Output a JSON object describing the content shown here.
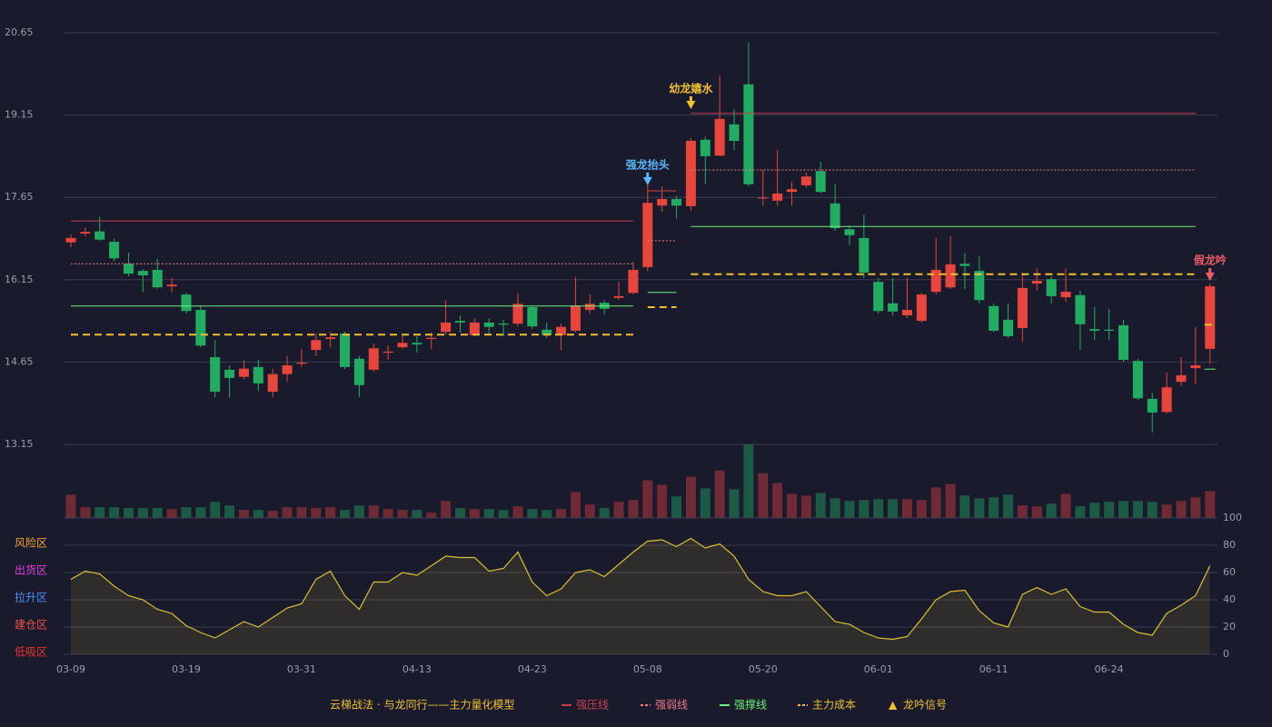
{
  "chart_data": [
    {
      "type": "candlestick",
      "title": "云梯战法 · 与龙同行——主力量化模型",
      "ylim": [
        13.15,
        20.65
      ],
      "yticks": [
        13.15,
        14.65,
        16.15,
        17.65,
        19.15,
        20.65
      ],
      "grid": true,
      "up_color": "#e8453c",
      "down_color": "#22ac62",
      "open": [
        16.83,
        16.99,
        17.03,
        16.84,
        16.44,
        16.31,
        16.33,
        16.03,
        15.88,
        15.6,
        14.74,
        14.51,
        14.38,
        14.56,
        14.11,
        14.43,
        14.62,
        14.87,
        15.07,
        15.17,
        14.71,
        14.51,
        14.82,
        14.92,
        15.0,
        15.07,
        15.2,
        15.4,
        15.14,
        15.37,
        15.35,
        15.35,
        15.65,
        15.24,
        15.14,
        15.22,
        15.6,
        15.73,
        15.82,
        15.91,
        16.38,
        17.5,
        17.62,
        17.49,
        18.7,
        18.41,
        18.98,
        19.71,
        17.63,
        17.59,
        17.75,
        17.87,
        18.13,
        17.54,
        17.07,
        16.91,
        16.11,
        15.72,
        15.5,
        15.4,
        15.93,
        16.01,
        16.44,
        16.31,
        15.67,
        15.42,
        15.27,
        16.08,
        16.16,
        15.83,
        15.87,
        15.25,
        15.24,
        15.32,
        14.67,
        13.98,
        13.74,
        14.29,
        14.54,
        14.89
      ],
      "high": [
        16.97,
        17.1,
        17.3,
        16.9,
        16.64,
        16.34,
        16.53,
        16.18,
        15.92,
        15.68,
        15.05,
        14.59,
        14.68,
        14.69,
        14.53,
        14.76,
        14.89,
        15.17,
        15.2,
        15.2,
        14.76,
        14.99,
        14.95,
        15.12,
        15.12,
        15.19,
        15.77,
        15.5,
        15.45,
        15.45,
        15.42,
        15.91,
        15.68,
        15.37,
        15.35,
        16.2,
        15.88,
        15.78,
        16.11,
        16.48,
        18.02,
        17.85,
        17.68,
        18.73,
        18.76,
        19.87,
        19.26,
        20.47,
        18.15,
        18.51,
        17.93,
        18.1,
        18.3,
        17.9,
        17.14,
        17.34,
        16.18,
        16.18,
        16.18,
        15.91,
        16.91,
        16.94,
        16.64,
        16.58,
        15.72,
        15.72,
        16.28,
        16.35,
        16.21,
        16.35,
        15.95,
        15.65,
        15.62,
        15.42,
        14.71,
        14.09,
        14.46,
        14.74,
        15.29,
        16.08
      ],
      "low": [
        16.74,
        16.94,
        16.86,
        16.48,
        16.21,
        15.92,
        15.98,
        15.92,
        15.53,
        14.92,
        14.01,
        14.0,
        14.33,
        14.13,
        14.01,
        14.29,
        14.56,
        14.76,
        14.92,
        14.52,
        14.01,
        14.47,
        14.69,
        14.89,
        14.82,
        14.89,
        15.15,
        15.19,
        15.12,
        15.15,
        15.12,
        15.3,
        15.25,
        15.09,
        14.87,
        15.19,
        15.53,
        15.52,
        15.78,
        15.88,
        16.31,
        17.39,
        17.27,
        17.4,
        17.9,
        18.4,
        18.51,
        17.85,
        17.5,
        17.5,
        17.5,
        17.82,
        17.72,
        17.04,
        16.78,
        16.18,
        15.53,
        15.5,
        15.45,
        15.37,
        15.88,
        15.98,
        15.98,
        15.72,
        15.19,
        15.09,
        15.02,
        15.95,
        15.72,
        15.75,
        14.87,
        15.05,
        15.05,
        14.66,
        13.96,
        13.37,
        13.71,
        14.21,
        14.24,
        14.62
      ],
      "close": [
        16.91,
        17.02,
        16.88,
        16.54,
        16.26,
        16.23,
        16.01,
        16.06,
        15.58,
        14.95,
        14.11,
        14.36,
        14.53,
        14.26,
        14.43,
        14.59,
        14.64,
        15.05,
        15.1,
        14.56,
        14.23,
        14.9,
        14.84,
        15.0,
        14.97,
        15.09,
        15.37,
        15.37,
        15.37,
        15.29,
        15.33,
        15.71,
        15.3,
        15.14,
        15.29,
        15.68,
        15.71,
        15.62,
        15.85,
        16.33,
        17.55,
        17.62,
        17.5,
        18.68,
        18.4,
        19.08,
        18.68,
        17.89,
        17.65,
        17.72,
        17.8,
        18.03,
        17.75,
        17.09,
        16.96,
        16.28,
        15.58,
        15.57,
        15.6,
        15.88,
        16.33,
        16.43,
        16.4,
        15.78,
        15.22,
        15.12,
        16.0,
        16.13,
        15.85,
        15.93,
        15.34,
        15.22,
        15.22,
        14.69,
        13.99,
        13.73,
        14.19,
        14.41,
        14.59,
        16.03
      ],
      "series": [
        {
          "name": "强压线",
          "color": "#c8404a",
          "style": "solid",
          "values": [
            17.22,
            17.22,
            17.22,
            17.22,
            17.22,
            17.22,
            17.22,
            17.22,
            17.22,
            17.22,
            17.22,
            17.22,
            17.22,
            17.22,
            17.22,
            17.22,
            17.22,
            17.22,
            17.22,
            17.22,
            17.22,
            17.22,
            17.22,
            17.22,
            17.22,
            17.22,
            17.22,
            17.22,
            17.22,
            17.22,
            17.22,
            17.22,
            17.22,
            17.22,
            17.22,
            17.22,
            17.22,
            17.22,
            17.22,
            17.22,
            17.77,
            17.77,
            17.77,
            19.18,
            19.18,
            19.18,
            19.18,
            19.18,
            19.18,
            19.18,
            19.18,
            19.18,
            19.18,
            19.18,
            19.18,
            19.18,
            19.18,
            19.18,
            19.18,
            19.18,
            19.18,
            19.18,
            19.18,
            19.18,
            19.18,
            19.18,
            19.18,
            19.18,
            19.18,
            19.18,
            19.18,
            19.18,
            19.18,
            19.18,
            19.18,
            19.18,
            19.18,
            19.18,
            19.18,
            null
          ]
        },
        {
          "name": "强弱线",
          "color": "#f07a8a",
          "style": "dot",
          "values": [
            16.44,
            16.44,
            16.44,
            16.44,
            16.44,
            16.44,
            16.44,
            16.44,
            16.44,
            16.44,
            16.44,
            16.44,
            16.44,
            16.44,
            16.44,
            16.44,
            16.44,
            16.44,
            16.44,
            16.44,
            16.44,
            16.44,
            16.44,
            16.44,
            16.44,
            16.44,
            16.44,
            16.44,
            16.44,
            16.44,
            16.44,
            16.44,
            16.44,
            16.44,
            16.44,
            16.44,
            16.44,
            16.44,
            16.44,
            16.44,
            16.86,
            16.86,
            16.86,
            18.15,
            18.15,
            18.15,
            18.15,
            18.15,
            18.15,
            18.15,
            18.15,
            18.15,
            18.15,
            18.15,
            18.15,
            18.15,
            18.15,
            18.15,
            18.15,
            18.15,
            18.15,
            18.15,
            18.15,
            18.15,
            18.15,
            18.15,
            18.15,
            18.15,
            18.15,
            18.15,
            18.15,
            18.15,
            18.15,
            18.15,
            18.15,
            18.15,
            18.15,
            18.15,
            18.15,
            null
          ]
        },
        {
          "name": "强撑线",
          "color": "#6ef07a",
          "style": "solid",
          "values": [
            15.67,
            15.67,
            15.67,
            15.67,
            15.67,
            15.67,
            15.67,
            15.67,
            15.67,
            15.67,
            15.67,
            15.67,
            15.67,
            15.67,
            15.67,
            15.67,
            15.67,
            15.67,
            15.67,
            15.67,
            15.67,
            15.67,
            15.67,
            15.67,
            15.67,
            15.67,
            15.67,
            15.67,
            15.67,
            15.67,
            15.67,
            15.67,
            15.67,
            15.67,
            15.67,
            15.67,
            15.67,
            15.67,
            15.67,
            15.67,
            15.92,
            15.92,
            15.92,
            17.12,
            17.12,
            17.12,
            17.12,
            17.12,
            17.12,
            17.12,
            17.12,
            17.12,
            17.12,
            17.12,
            17.12,
            17.12,
            17.12,
            17.12,
            17.12,
            17.12,
            17.12,
            17.12,
            17.12,
            17.12,
            17.12,
            17.12,
            17.12,
            17.12,
            17.12,
            17.12,
            17.12,
            17.12,
            17.12,
            17.12,
            17.12,
            17.12,
            17.12,
            17.12,
            17.12,
            14.52
          ]
        },
        {
          "name": "主力成本",
          "color": "#f0c030",
          "style": "dash",
          "values": [
            15.15,
            15.15,
            15.15,
            15.15,
            15.15,
            15.15,
            15.15,
            15.15,
            15.15,
            15.15,
            15.15,
            15.15,
            15.15,
            15.15,
            15.15,
            15.15,
            15.15,
            15.15,
            15.15,
            15.15,
            15.15,
            15.15,
            15.15,
            15.15,
            15.15,
            15.15,
            15.15,
            15.15,
            15.15,
            15.15,
            15.15,
            15.15,
            15.15,
            15.15,
            15.15,
            15.15,
            15.15,
            15.15,
            15.15,
            15.15,
            15.65,
            15.65,
            15.65,
            16.25,
            16.25,
            16.25,
            16.25,
            16.25,
            16.25,
            16.25,
            16.25,
            16.25,
            16.25,
            16.25,
            16.25,
            16.25,
            16.25,
            16.25,
            16.25,
            16.25,
            16.25,
            16.25,
            16.25,
            16.25,
            16.25,
            16.25,
            16.25,
            16.25,
            16.25,
            16.25,
            16.25,
            16.25,
            16.25,
            16.25,
            16.25,
            16.25,
            16.25,
            16.25,
            16.25,
            15.33
          ]
        }
      ],
      "annotations": [
        {
          "text": "强龙抬头",
          "x": 40,
          "y": 17.87,
          "color": "#5ab8ff"
        },
        {
          "text": "幼龙嬉水",
          "x": 43,
          "y": 19.26,
          "color": "#f0c030"
        },
        {
          "text": "假龙吟",
          "x": 79,
          "y": 16.13,
          "color": "#f05a6a"
        }
      ],
      "signal_legend": {
        "symbol": "▲",
        "label": "龙吟信号",
        "color": "#f0c030"
      }
    },
    {
      "type": "bar",
      "ylim": [
        0,
        82
      ],
      "values": [
        26,
        12,
        12,
        12,
        11,
        11,
        11,
        10,
        12,
        12,
        18,
        14,
        9,
        9,
        8,
        12,
        12,
        11,
        12,
        9,
        14,
        14,
        10,
        9,
        9,
        6,
        19,
        11,
        10,
        10,
        9,
        13,
        10,
        9,
        10,
        29,
        15,
        11,
        18,
        20,
        42,
        37,
        24,
        46,
        33,
        53,
        32,
        82,
        50,
        39,
        27,
        25,
        28,
        22,
        19,
        20,
        21,
        21,
        21,
        20,
        34,
        38,
        25,
        22,
        23,
        26,
        14,
        13,
        16,
        27,
        13,
        17,
        18,
        19,
        19,
        18,
        15,
        19,
        23,
        30
      ]
    },
    {
      "type": "area",
      "color": "#d8c030",
      "categories": [
        "03-09",
        null,
        null,
        null,
        null,
        null,
        null,
        null,
        "03-19",
        null,
        null,
        null,
        null,
        null,
        null,
        null,
        "03-31",
        null,
        null,
        null,
        null,
        null,
        null,
        null,
        "04-13",
        null,
        null,
        null,
        null,
        null,
        null,
        null,
        "04-23",
        null,
        null,
        null,
        null,
        null,
        null,
        null,
        "05-08",
        null,
        null,
        null,
        null,
        null,
        null,
        null,
        "05-20",
        null,
        null,
        null,
        null,
        null,
        null,
        null,
        "06-01",
        null,
        null,
        null,
        null,
        null,
        null,
        null,
        "06-11",
        null,
        null,
        null,
        null,
        null,
        null,
        null,
        "06-24",
        null,
        null,
        null,
        null,
        null,
        null,
        null
      ],
      "values": [
        55,
        61,
        59,
        50,
        43,
        40,
        33,
        30,
        21,
        16,
        12,
        18,
        24,
        20,
        27,
        34,
        37,
        55,
        61,
        43,
        33,
        53,
        53,
        60,
        58,
        65,
        72,
        71,
        71,
        61,
        63,
        75,
        53,
        43,
        48,
        60,
        62,
        57,
        66,
        75,
        83,
        84,
        79,
        85,
        78,
        81,
        72,
        55,
        46,
        43,
        43,
        46,
        35,
        24,
        22,
        16,
        12,
        11,
        13,
        26,
        40,
        46,
        47,
        32,
        23,
        20,
        44,
        49,
        44,
        48,
        35,
        31,
        31,
        22,
        16,
        14,
        30,
        36,
        43,
        65
      ],
      "ylim": [
        0,
        100
      ],
      "yticks": [
        0,
        20,
        40,
        60,
        80,
        100
      ],
      "ytick_colors": [
        "#f03a3a",
        "#f0703a",
        "#4a90ff",
        "#e040e0",
        "#f0a030",
        "#4cf04c"
      ],
      "zones": [
        {
          "text": "风险区",
          "value": 80,
          "color": "#f0a030"
        },
        {
          "text": "出货区",
          "value": 60,
          "color": "#e040e0"
        },
        {
          "text": "拉升区",
          "value": 40,
          "color": "#4a90ff"
        },
        {
          "text": "建仓区",
          "value": 20,
          "color": "#f05050"
        },
        {
          "text": "低吸区",
          "value": 0,
          "color": "#f03030"
        }
      ]
    }
  ]
}
